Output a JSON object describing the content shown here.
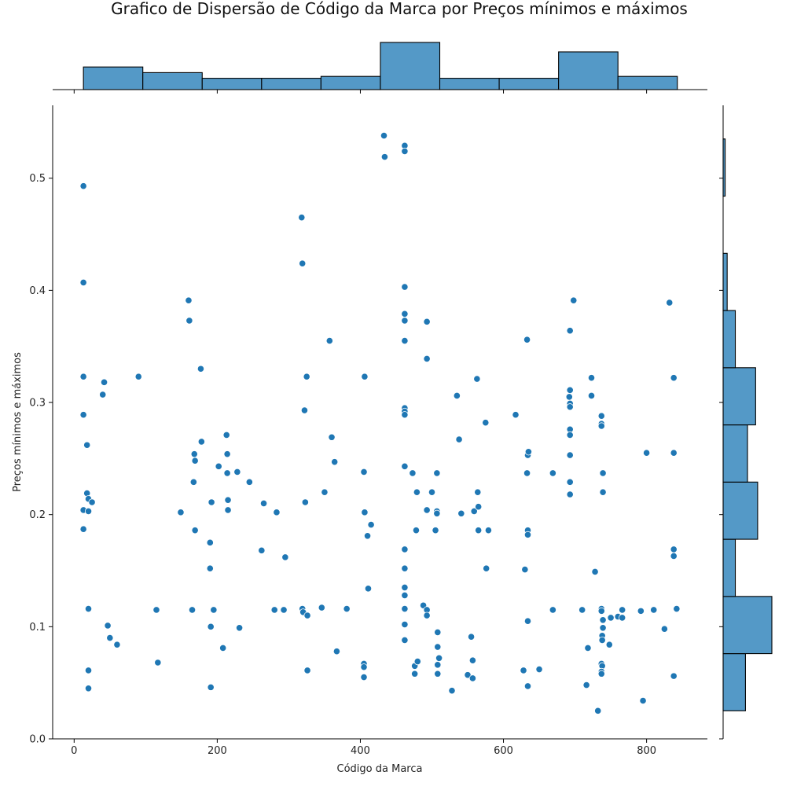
{
  "chart_data": {
    "type": "scatter",
    "title": "Grafico de Dispersão de Código da Marca por Preços mínimos e máximos",
    "xlabel": "Código da Marca",
    "ylabel": "Preços mínimos e máximos",
    "xlim": [
      -30,
      885
    ],
    "ylim": [
      0,
      0.565
    ],
    "xticks": [
      0,
      200,
      400,
      600,
      800
    ],
    "yticks": [
      0.0,
      0.1,
      0.2,
      0.3,
      0.4,
      0.5
    ],
    "grid": false,
    "point_color": "#1f77b4",
    "hist_color": "#5499c7",
    "points": [
      [
        13,
        0.493
      ],
      [
        13,
        0.407
      ],
      [
        13,
        0.323
      ],
      [
        13,
        0.289
      ],
      [
        13,
        0.204
      ],
      [
        13,
        0.187
      ],
      [
        18,
        0.262
      ],
      [
        18,
        0.219
      ],
      [
        20,
        0.214
      ],
      [
        20,
        0.203
      ],
      [
        20,
        0.116
      ],
      [
        20,
        0.061
      ],
      [
        20,
        0.045
      ],
      [
        25,
        0.211
      ],
      [
        40,
        0.307
      ],
      [
        42,
        0.318
      ],
      [
        47,
        0.101
      ],
      [
        50,
        0.09
      ],
      [
        60,
        0.084
      ],
      [
        90,
        0.323
      ],
      [
        115,
        0.115
      ],
      [
        117,
        0.068
      ],
      [
        149,
        0.202
      ],
      [
        160,
        0.391
      ],
      [
        161,
        0.373
      ],
      [
        165,
        0.115
      ],
      [
        167,
        0.229
      ],
      [
        168,
        0.254
      ],
      [
        169,
        0.248
      ],
      [
        169,
        0.186
      ],
      [
        177,
        0.33
      ],
      [
        178,
        0.265
      ],
      [
        190,
        0.175
      ],
      [
        190,
        0.152
      ],
      [
        191,
        0.1
      ],
      [
        191,
        0.046
      ],
      [
        192,
        0.211
      ],
      [
        195,
        0.115
      ],
      [
        202,
        0.243
      ],
      [
        208,
        0.081
      ],
      [
        213,
        0.271
      ],
      [
        214,
        0.254
      ],
      [
        214,
        0.237
      ],
      [
        215,
        0.213
      ],
      [
        215,
        0.204
      ],
      [
        228,
        0.238
      ],
      [
        231,
        0.099
      ],
      [
        245,
        0.229
      ],
      [
        262,
        0.168
      ],
      [
        265,
        0.21
      ],
      [
        280,
        0.115
      ],
      [
        283,
        0.202
      ],
      [
        293,
        0.115
      ],
      [
        295,
        0.162
      ],
      [
        318,
        0.465
      ],
      [
        319,
        0.424
      ],
      [
        319,
        0.116
      ],
      [
        320,
        0.113
      ],
      [
        322,
        0.293
      ],
      [
        323,
        0.211
      ],
      [
        325,
        0.323
      ],
      [
        326,
        0.11
      ],
      [
        326,
        0.061
      ],
      [
        346,
        0.117
      ],
      [
        350,
        0.22
      ],
      [
        357,
        0.355
      ],
      [
        360,
        0.269
      ],
      [
        364,
        0.247
      ],
      [
        367,
        0.078
      ],
      [
        381,
        0.116
      ],
      [
        406,
        0.323
      ],
      [
        405,
        0.238
      ],
      [
        406,
        0.202
      ],
      [
        405,
        0.067
      ],
      [
        405,
        0.064
      ],
      [
        405,
        0.055
      ],
      [
        410,
        0.181
      ],
      [
        411,
        0.134
      ],
      [
        415,
        0.191
      ],
      [
        433,
        0.538
      ],
      [
        434,
        0.519
      ],
      [
        462,
        0.529
      ],
      [
        462,
        0.524
      ],
      [
        462,
        0.403
      ],
      [
        462,
        0.379
      ],
      [
        462,
        0.373
      ],
      [
        462,
        0.355
      ],
      [
        462,
        0.295
      ],
      [
        462,
        0.292
      ],
      [
        462,
        0.289
      ],
      [
        462,
        0.243
      ],
      [
        462,
        0.169
      ],
      [
        462,
        0.152
      ],
      [
        462,
        0.135
      ],
      [
        462,
        0.128
      ],
      [
        462,
        0.116
      ],
      [
        462,
        0.102
      ],
      [
        462,
        0.088
      ],
      [
        473,
        0.237
      ],
      [
        476,
        0.065
      ],
      [
        476,
        0.058
      ],
      [
        478,
        0.186
      ],
      [
        479,
        0.22
      ],
      [
        480,
        0.069
      ],
      [
        488,
        0.119
      ],
      [
        493,
        0.372
      ],
      [
        493,
        0.339
      ],
      [
        493,
        0.204
      ],
      [
        493,
        0.115
      ],
      [
        493,
        0.11
      ],
      [
        500,
        0.22
      ],
      [
        507,
        0.203
      ],
      [
        507,
        0.201
      ],
      [
        507,
        0.237
      ],
      [
        505,
        0.186
      ],
      [
        508,
        0.095
      ],
      [
        508,
        0.082
      ],
      [
        508,
        0.066
      ],
      [
        508,
        0.058
      ],
      [
        510,
        0.072
      ],
      [
        528,
        0.043
      ],
      [
        535,
        0.306
      ],
      [
        538,
        0.267
      ],
      [
        541,
        0.201
      ],
      [
        550,
        0.057
      ],
      [
        555,
        0.091
      ],
      [
        557,
        0.07
      ],
      [
        557,
        0.054
      ],
      [
        559,
        0.203
      ],
      [
        563,
        0.321
      ],
      [
        564,
        0.22
      ],
      [
        565,
        0.207
      ],
      [
        565,
        0.186
      ],
      [
        575,
        0.282
      ],
      [
        576,
        0.152
      ],
      [
        579,
        0.186
      ],
      [
        617,
        0.289
      ],
      [
        628,
        0.061
      ],
      [
        630,
        0.151
      ],
      [
        633,
        0.356
      ],
      [
        634,
        0.253
      ],
      [
        635,
        0.256
      ],
      [
        633,
        0.237
      ],
      [
        634,
        0.186
      ],
      [
        634,
        0.182
      ],
      [
        634,
        0.105
      ],
      [
        634,
        0.047
      ],
      [
        650,
        0.062
      ],
      [
        669,
        0.115
      ],
      [
        669,
        0.237
      ],
      [
        693,
        0.364
      ],
      [
        693,
        0.311
      ],
      [
        692,
        0.305
      ],
      [
        693,
        0.299
      ],
      [
        693,
        0.296
      ],
      [
        693,
        0.276
      ],
      [
        693,
        0.271
      ],
      [
        693,
        0.253
      ],
      [
        693,
        0.229
      ],
      [
        693,
        0.218
      ],
      [
        698,
        0.391
      ],
      [
        710,
        0.115
      ],
      [
        716,
        0.048
      ],
      [
        718,
        0.081
      ],
      [
        723,
        0.322
      ],
      [
        723,
        0.306
      ],
      [
        728,
        0.149
      ],
      [
        732,
        0.025
      ],
      [
        737,
        0.288
      ],
      [
        737,
        0.281
      ],
      [
        737,
        0.279
      ],
      [
        739,
        0.237
      ],
      [
        739,
        0.22
      ],
      [
        737,
        0.116
      ],
      [
        737,
        0.114
      ],
      [
        739,
        0.106
      ],
      [
        739,
        0.099
      ],
      [
        738,
        0.092
      ],
      [
        738,
        0.088
      ],
      [
        737,
        0.067
      ],
      [
        738,
        0.065
      ],
      [
        737,
        0.06
      ],
      [
        737,
        0.058
      ],
      [
        748,
        0.084
      ],
      [
        750,
        0.108
      ],
      [
        760,
        0.109
      ],
      [
        766,
        0.115
      ],
      [
        766,
        0.108
      ],
      [
        792,
        0.114
      ],
      [
        795,
        0.034
      ],
      [
        800,
        0.255
      ],
      [
        810,
        0.115
      ],
      [
        825,
        0.098
      ],
      [
        832,
        0.389
      ],
      [
        838,
        0.322
      ],
      [
        838,
        0.255
      ],
      [
        838,
        0.169
      ],
      [
        838,
        0.163
      ],
      [
        838,
        0.056
      ],
      [
        842,
        0.116
      ]
    ],
    "x_histogram": {
      "bin_edges": [
        13,
        96,
        179,
        262,
        345,
        428,
        511,
        594,
        677,
        760,
        843
      ],
      "counts": [
        12,
        9,
        6,
        6,
        7,
        25,
        6,
        6,
        20,
        7
      ]
    },
    "y_histogram": {
      "bin_edges": [
        0.025,
        0.076,
        0.127,
        0.178,
        0.229,
        0.28,
        0.331,
        0.382,
        0.433,
        0.484,
        0.535
      ],
      "counts": [
        11,
        24,
        6,
        17,
        12,
        16,
        6,
        2,
        0,
        1
      ]
    }
  }
}
